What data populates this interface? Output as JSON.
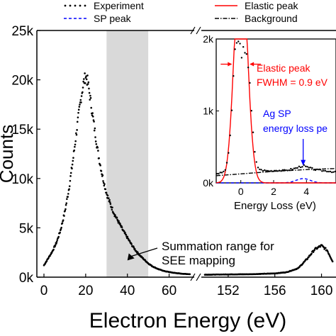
{
  "chart_data": [
    {
      "type": "scatter",
      "xlabel": "Electron Energy (eV)",
      "ylabel": "Counts",
      "ylim": [
        0,
        25000
      ],
      "x_segments": [
        {
          "range": [
            0,
            70
          ],
          "ticks": [
            0,
            20,
            40,
            60
          ],
          "tick_labels": [
            "0",
            "20",
            "40",
            "60"
          ]
        },
        {
          "range": [
            150,
            161
          ],
          "ticks": [
            152,
            156,
            160
          ],
          "tick_labels": [
            "152",
            "156",
            "160"
          ]
        }
      ],
      "y_ticks": [
        0,
        5000,
        10000,
        15000,
        20000,
        25000
      ],
      "y_tick_labels": [
        "0k",
        "5k",
        "10k",
        "15k",
        "20k",
        "25k"
      ],
      "legend": {
        "placement": "top",
        "entries": [
          {
            "label": "Experiment",
            "style": "dots",
            "color": "#000000"
          },
          {
            "label": "Elastic peak",
            "style": "solid",
            "color": "#ff0000"
          },
          {
            "label": "SP peak",
            "style": "dashed",
            "color": "#0000ff"
          },
          {
            "label": "Background",
            "style": "dashdot",
            "color": "#000000"
          }
        ]
      },
      "highlight_region": {
        "x": [
          30,
          50
        ],
        "color": "#d9d9d9"
      },
      "annotation": {
        "lines": [
          "Summation range for",
          "SEE mapping"
        ],
        "arrow_to": [
          40,
          1700
        ]
      },
      "series": [
        {
          "name": "Experiment",
          "segment1_points": [
            [
              0,
              1200
            ],
            [
              2,
              1900
            ],
            [
              4,
              2600
            ],
            [
              6,
              3500
            ],
            [
              8,
              4800
            ],
            [
              10,
              6600
            ],
            [
              12,
              9000
            ],
            [
              14,
              12000
            ],
            [
              16,
              15400
            ],
            [
              17,
              17000
            ],
            [
              18,
              18500
            ],
            [
              19,
              19700
            ],
            [
              20,
              20400
            ],
            [
              21,
              19800
            ],
            [
              22,
              18400
            ],
            [
              24,
              15400
            ],
            [
              26,
              12500
            ],
            [
              28,
              10300
            ],
            [
              30,
              8500
            ],
            [
              32,
              7300
            ],
            [
              34,
              6300
            ],
            [
              36,
              5500
            ],
            [
              38,
              4700
            ],
            [
              40,
              4000
            ],
            [
              42,
              3300
            ],
            [
              44,
              2700
            ],
            [
              46,
              2200
            ],
            [
              48,
              1800
            ],
            [
              50,
              1400
            ],
            [
              52,
              1100
            ],
            [
              55,
              800
            ],
            [
              58,
              600
            ],
            [
              62,
              450
            ],
            [
              66,
              350
            ],
            [
              70,
              300
            ]
          ],
          "segment2_points": [
            [
              150,
              250
            ],
            [
              152,
              280
            ],
            [
              154,
              300
            ],
            [
              156,
              380
            ],
            [
              157,
              500
            ],
            [
              158,
              900
            ],
            [
              158.8,
              1900
            ],
            [
              159.4,
              2800
            ],
            [
              160,
              3200
            ],
            [
              160.5,
              2700
            ],
            [
              161,
              1500
            ]
          ]
        }
      ]
    },
    {
      "type": "line",
      "inset": true,
      "xlabel": "Energy Loss (eV)",
      "xlim": [
        -1.5,
        5.8
      ],
      "ylim": [
        0,
        2000
      ],
      "x_ticks": [
        0,
        2,
        4
      ],
      "x_tick_labels": [
        "0",
        "2",
        "4"
      ],
      "y_ticks": [
        0,
        1000,
        2000
      ],
      "y_tick_labels": [
        "0k",
        "1k",
        "2k"
      ],
      "annotations": [
        {
          "lines": [
            "Elastic peak",
            "FWHM = 0.9 eV"
          ],
          "color": "#ff0000"
        },
        {
          "lines": [
            "Ag SP",
            "energy loss pe"
          ],
          "color": "#0000ff",
          "arrow_to": [
            3.8,
            230
          ]
        }
      ],
      "series": [
        {
          "name": "Experiment",
          "style": "dots",
          "points": [
            [
              -1.4,
              130
            ],
            [
              -1.2,
              140
            ],
            [
              -1.0,
              160
            ],
            [
              -0.9,
              210
            ],
            [
              -0.8,
              320
            ],
            [
              -0.7,
              520
            ],
            [
              -0.6,
              820
            ],
            [
              -0.5,
              1200
            ],
            [
              -0.4,
              1620
            ],
            [
              -0.3,
              2000
            ],
            [
              0.5,
              1650
            ],
            [
              0.6,
              1220
            ],
            [
              0.7,
              830
            ],
            [
              0.8,
              520
            ],
            [
              0.9,
              330
            ],
            [
              1.0,
              230
            ],
            [
              1.2,
              180
            ],
            [
              1.5,
              170
            ],
            [
              1.8,
              165
            ],
            [
              2.2,
              175
            ],
            [
              2.6,
              170
            ],
            [
              3.0,
              185
            ],
            [
              3.3,
              200
            ],
            [
              3.6,
              225
            ],
            [
              3.8,
              240
            ],
            [
              4.0,
              220
            ],
            [
              4.3,
              200
            ],
            [
              4.6,
              180
            ],
            [
              5.0,
              170
            ],
            [
              5.3,
              165
            ],
            [
              5.7,
              150
            ]
          ]
        },
        {
          "name": "Elastic peak",
          "style": "solid",
          "color": "#ff0000",
          "center": 0.0,
          "fwhm": 0.9,
          "amplitude": 3300
        },
        {
          "name": "SP peak",
          "style": "dashed",
          "color": "#0000ff",
          "center": 3.8,
          "fwhm": 1.0,
          "amplitude": 60
        },
        {
          "name": "Background",
          "style": "dashdot",
          "color": "#000000",
          "points": [
            [
              -1.5,
              100
            ],
            [
              0,
              125
            ],
            [
              2,
              160
            ],
            [
              4,
              185
            ],
            [
              5.8,
              200
            ]
          ]
        }
      ]
    }
  ]
}
